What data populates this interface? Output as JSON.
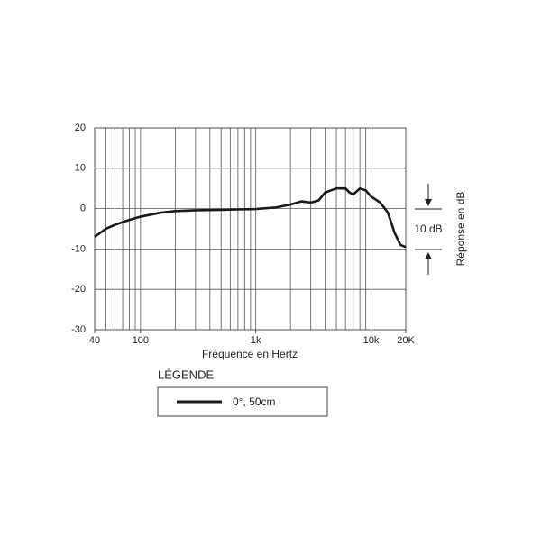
{
  "chart_data": {
    "type": "line",
    "xlabel": "Fréquence en Hertz",
    "ylabel": "Réponse en dB",
    "annotation": "10 dB",
    "legend_title": "LÉGENDE",
    "xscale": "log",
    "xlim": [
      40,
      20000
    ],
    "xticks": [
      40,
      100,
      {
        "value": 1000,
        "label": "1k"
      },
      {
        "value": 10000,
        "label": "10k"
      },
      {
        "value": 20000,
        "label": "20K"
      }
    ],
    "xgrid": [
      40,
      50,
      60,
      70,
      80,
      90,
      100,
      200,
      300,
      400,
      500,
      600,
      700,
      800,
      900,
      1000,
      2000,
      3000,
      4000,
      5000,
      6000,
      7000,
      8000,
      9000,
      10000,
      20000
    ],
    "ylim": [
      -30,
      20
    ],
    "yticks": [
      20,
      10,
      0,
      -10,
      -20,
      -30
    ],
    "grid": true,
    "x": [
      40,
      50,
      60,
      80,
      100,
      150,
      200,
      300,
      500,
      700,
      1000,
      1500,
      2000,
      2500,
      3000,
      3500,
      4000,
      5000,
      6000,
      6500,
      7000,
      8000,
      9000,
      10000,
      12000,
      14000,
      16000,
      18000,
      20000
    ],
    "series": [
      {
        "name": "0°, 50cm",
        "color": "#1a1a1a",
        "values": [
          -7,
          -5,
          -4,
          -2.8,
          -2,
          -1,
          -0.6,
          -0.4,
          -0.3,
          -0.2,
          -0.1,
          0.3,
          1,
          1.8,
          1.5,
          2,
          4,
          5,
          5,
          4,
          3.5,
          5,
          4.5,
          3,
          1.5,
          -1,
          -6,
          -9,
          -9.5
        ]
      }
    ]
  }
}
